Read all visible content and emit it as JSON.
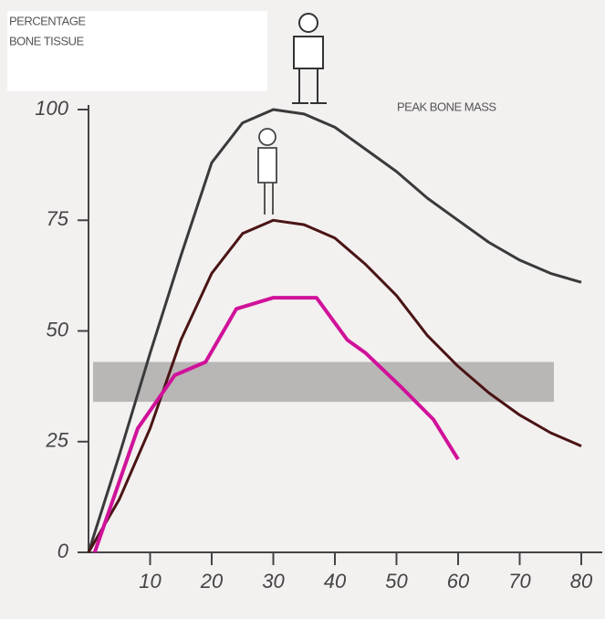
{
  "chart_data": {
    "type": "line",
    "ylabel": [
      "PERCENTAGE",
      "BONE TISSUE"
    ],
    "annotation": "PEAK BONE MASS",
    "xlim": [
      0,
      84
    ],
    "xticks": [
      10,
      20,
      30,
      40,
      50,
      60,
      70,
      80
    ],
    "ylim": [
      0,
      100
    ],
    "yticks": [
      0,
      25,
      50,
      75,
      100
    ],
    "band": {
      "values": [
        34,
        43
      ],
      "color": "#b9b6b6"
    },
    "series": [
      {
        "color": "#3a3a3a",
        "x": [
          0,
          5,
          10,
          15,
          20,
          25,
          30,
          35,
          40,
          45,
          50,
          55,
          60,
          65,
          70,
          75,
          80
        ],
        "values": [
          0,
          22,
          45,
          67,
          88,
          97,
          100,
          99,
          96,
          91,
          86,
          80,
          75,
          70,
          66,
          63,
          61
        ]
      },
      {
        "color": "#4a1414",
        "x": [
          0,
          5,
          10,
          15,
          20,
          25,
          30,
          35,
          40,
          45,
          50,
          55,
          60,
          65,
          70,
          75,
          80
        ],
        "values": [
          0,
          12,
          28,
          48,
          63,
          72,
          75,
          74,
          71,
          65,
          58,
          49,
          42,
          36,
          31,
          27,
          24
        ]
      },
      {
        "color": "#d0129a",
        "x": [
          1,
          8,
          14,
          19,
          24,
          30,
          37,
          42,
          45,
          51,
          56,
          60
        ],
        "values": [
          0,
          28,
          40,
          43,
          55,
          57.5,
          57.5,
          48,
          45,
          37,
          30,
          21
        ]
      }
    ]
  }
}
